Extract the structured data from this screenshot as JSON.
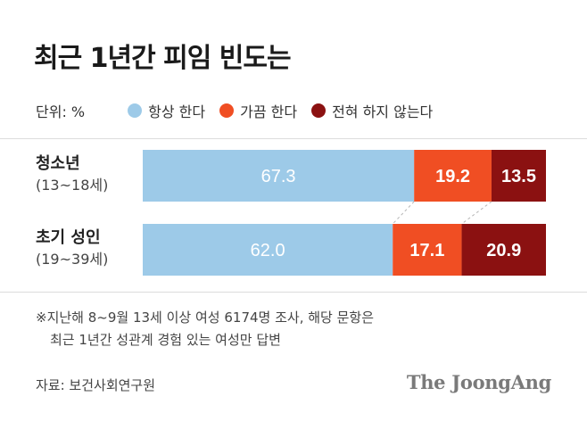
{
  "title": "최근 1년간 피임 빈도는",
  "unit_label": "단위: %",
  "chart_data": {
    "type": "bar",
    "orientation": "horizontal",
    "stacked": true,
    "normalized": true,
    "categories": [
      {
        "name": "청소년",
        "sub": "(13~18세)"
      },
      {
        "name": "초기 성인",
        "sub": "(19~39세)"
      }
    ],
    "series": [
      {
        "name": "항상 한다",
        "color": "#9dcae8",
        "values": [
          67.3,
          62.0
        ]
      },
      {
        "name": "가끔 한다",
        "color": "#f04e23",
        "values": [
          19.2,
          17.1
        ]
      },
      {
        "name": "전혀 하지 않는다",
        "color": "#8b1111",
        "values": [
          13.5,
          20.9
        ]
      }
    ],
    "data_labels": [
      [
        "67.3",
        "19.2",
        "13.5"
      ],
      [
        "62.0",
        "17.1",
        "20.9"
      ]
    ],
    "xlim": [
      0,
      100
    ],
    "legend": "top",
    "grid": false
  },
  "footnote": {
    "line1": "※지난해 8~9월 13세 이상 여성 6174명 조사, 해당 문항은",
    "line2": "최근 1년간 성관계 경험 있는 여성만 답변"
  },
  "source": "자료: 보건사회연구원",
  "brand": "The JoongAng"
}
